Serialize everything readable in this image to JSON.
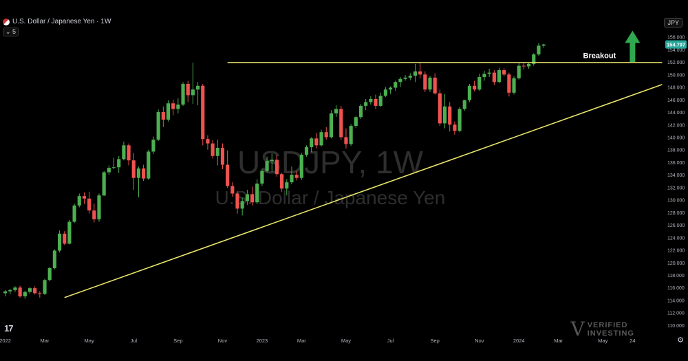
{
  "header": {
    "symbol_title": "U.S. Dollar / Japanese Yen · 1W",
    "interval_button": "⌄ 5",
    "currency_button": "JPY"
  },
  "watermark": {
    "big": "USDJPY, 1W",
    "small": "U.S. Dollar / Japanese Yen",
    "brand_line1": "VERIFIED",
    "brand_line2": "INVESTING"
  },
  "logo": "17",
  "settings_icon": "gear-icon",
  "colors": {
    "up": "#26a69a",
    "up_bright": "#4caf50",
    "down": "#ef5350",
    "line": "#e8e36a",
    "arrow": "#2fa84f",
    "price_tag": "#26a69a"
  },
  "chart_data": {
    "type": "candlestick",
    "title": "",
    "xlabel": "",
    "ylabel": "",
    "ylim": [
      109,
      157.5
    ],
    "y_ticks": [
      110,
      112,
      114,
      116,
      118,
      120,
      122,
      124,
      126,
      128,
      130,
      132,
      134,
      136,
      138,
      140,
      142,
      144,
      146,
      148,
      150,
      152,
      154,
      156
    ],
    "y_tick_labels": [
      "110.000",
      "112.000",
      "114.000",
      "116.000",
      "118.000",
      "120.000",
      "122.000",
      "124.000",
      "126.000",
      "128.000",
      "130.000",
      "132.000",
      "134.000",
      "136.000",
      "138.000",
      "140.000",
      "142.000",
      "144.000",
      "146.000",
      "148.000",
      "150.000",
      "152.000",
      "154.000",
      "156.000"
    ],
    "x_labels": [
      "2022",
      "Mar",
      "May",
      "Jul",
      "Sep",
      "Nov",
      "2023",
      "Mar",
      "May",
      "Jul",
      "Sep",
      "Nov",
      "2024",
      "Mar",
      "May",
      "24"
    ],
    "x_label_index": [
      0,
      8,
      17,
      26,
      35,
      44,
      52,
      60,
      69,
      78,
      87,
      96,
      104,
      112,
      121,
      127
    ],
    "last_price": 154.797,
    "last_price_label": "154.797",
    "candles_ohlc": [
      [
        115.1,
        115.6,
        114.6,
        115.4
      ],
      [
        115.4,
        115.8,
        114.9,
        115.6
      ],
      [
        115.6,
        116.2,
        115.3,
        116.0
      ],
      [
        116.0,
        116.3,
        114.4,
        114.6
      ],
      [
        114.6,
        115.5,
        114.2,
        115.3
      ],
      [
        115.3,
        116.1,
        115.0,
        115.9
      ],
      [
        115.9,
        116.2,
        114.9,
        115.1
      ],
      [
        115.1,
        115.4,
        114.4,
        115.0
      ],
      [
        115.0,
        117.4,
        114.8,
        117.2
      ],
      [
        117.2,
        119.3,
        117.0,
        119.1
      ],
      [
        119.1,
        122.1,
        118.9,
        121.9
      ],
      [
        121.9,
        125.1,
        121.6,
        124.6
      ],
      [
        124.6,
        125.0,
        122.8,
        123.0
      ],
      [
        123.0,
        126.8,
        122.9,
        126.5
      ],
      [
        126.5,
        129.4,
        126.3,
        129.1
      ],
      [
        129.1,
        131.0,
        128.8,
        130.6
      ],
      [
        130.6,
        131.2,
        129.3,
        130.2
      ],
      [
        130.2,
        131.3,
        127.8,
        128.3
      ],
      [
        128.3,
        129.4,
        126.4,
        126.9
      ],
      [
        126.9,
        131.0,
        126.5,
        130.7
      ],
      [
        130.7,
        134.6,
        130.6,
        134.4
      ],
      [
        134.4,
        135.5,
        134.0,
        135.1
      ],
      [
        135.1,
        136.7,
        134.9,
        135.2
      ],
      [
        135.2,
        137.0,
        134.3,
        136.5
      ],
      [
        136.5,
        139.3,
        136.3,
        138.7
      ],
      [
        138.7,
        139.0,
        135.5,
        136.3
      ],
      [
        136.3,
        137.5,
        131.6,
        133.5
      ],
      [
        133.5,
        135.3,
        130.4,
        135.0
      ],
      [
        135.0,
        135.6,
        133.0,
        133.4
      ],
      [
        133.4,
        138.0,
        133.2,
        137.7
      ],
      [
        137.7,
        140.1,
        137.3,
        139.6
      ],
      [
        139.6,
        144.4,
        139.4,
        144.0
      ],
      [
        144.0,
        144.9,
        141.6,
        142.8
      ],
      [
        142.8,
        145.9,
        142.5,
        145.4
      ],
      [
        145.4,
        146.0,
        143.5,
        144.5
      ],
      [
        144.5,
        146.2,
        143.8,
        145.2
      ],
      [
        145.2,
        148.8,
        145.0,
        148.5
      ],
      [
        148.5,
        149.0,
        145.6,
        146.7
      ],
      [
        146.7,
        151.9,
        145.3,
        147.6
      ],
      [
        147.6,
        148.8,
        145.1,
        148.2
      ],
      [
        148.2,
        148.5,
        138.7,
        139.7
      ],
      [
        139.7,
        140.3,
        138.0,
        139.0
      ],
      [
        139.0,
        139.5,
        136.6,
        137.0
      ],
      [
        137.0,
        139.6,
        135.5,
        138.3
      ],
      [
        138.3,
        139.0,
        134.9,
        135.6
      ],
      [
        135.6,
        137.9,
        131.9,
        132.2
      ],
      [
        132.2,
        132.8,
        130.5,
        131.0
      ],
      [
        131.0,
        131.4,
        127.8,
        128.6
      ],
      [
        128.6,
        130.3,
        127.5,
        129.8
      ],
      [
        129.8,
        131.6,
        129.2,
        130.9
      ],
      [
        130.9,
        132.1,
        129.1,
        129.6
      ],
      [
        129.6,
        133.3,
        129.3,
        132.6
      ],
      [
        132.6,
        134.9,
        132.2,
        134.6
      ],
      [
        134.6,
        136.9,
        134.4,
        136.2
      ],
      [
        136.2,
        137.4,
        134.5,
        136.4
      ],
      [
        136.4,
        137.1,
        133.7,
        134.1
      ],
      [
        134.1,
        134.3,
        131.3,
        131.8
      ],
      [
        131.8,
        133.3,
        130.7,
        132.8
      ],
      [
        132.8,
        135.3,
        132.5,
        134.0
      ],
      [
        134.0,
        134.6,
        133.1,
        133.5
      ],
      [
        133.5,
        137.5,
        133.2,
        137.2
      ],
      [
        137.2,
        138.7,
        136.9,
        138.4
      ],
      [
        138.4,
        140.0,
        137.6,
        139.8
      ],
      [
        139.8,
        140.7,
        138.2,
        138.7
      ],
      [
        138.7,
        141.2,
        138.5,
        140.8
      ],
      [
        140.8,
        141.6,
        139.6,
        140.0
      ],
      [
        140.0,
        144.3,
        139.8,
        143.8
      ],
      [
        143.8,
        145.1,
        143.2,
        144.5
      ],
      [
        144.5,
        145.0,
        139.6,
        140.0
      ],
      [
        140.0,
        141.4,
        138.2,
        138.9
      ],
      [
        138.9,
        142.1,
        138.6,
        141.8
      ],
      [
        141.8,
        143.4,
        141.5,
        143.2
      ],
      [
        143.2,
        145.3,
        142.9,
        145.0
      ],
      [
        145.0,
        146.1,
        144.3,
        145.6
      ],
      [
        145.6,
        146.5,
        145.2,
        146.1
      ],
      [
        146.1,
        146.8,
        144.5,
        145.0
      ],
      [
        145.0,
        147.1,
        144.8,
        146.6
      ],
      [
        146.6,
        148.0,
        146.4,
        147.6
      ],
      [
        147.6,
        148.1,
        146.9,
        147.9
      ],
      [
        147.9,
        149.0,
        147.4,
        148.8
      ],
      [
        148.8,
        149.6,
        148.0,
        149.3
      ],
      [
        149.3,
        149.9,
        149.0,
        149.5
      ],
      [
        149.5,
        150.2,
        149.1,
        149.8
      ],
      [
        149.8,
        151.7,
        148.8,
        150.5
      ],
      [
        150.5,
        151.9,
        149.4,
        150.0
      ],
      [
        150.0,
        150.5,
        147.2,
        147.6
      ],
      [
        147.6,
        149.8,
        147.2,
        149.5
      ],
      [
        149.5,
        150.2,
        146.8,
        147.0
      ],
      [
        147.0,
        147.6,
        141.8,
        142.2
      ],
      [
        142.2,
        146.9,
        141.4,
        144.9
      ],
      [
        144.9,
        145.6,
        140.9,
        142.0
      ],
      [
        142.0,
        142.5,
        140.4,
        141.0
      ],
      [
        141.0,
        144.8,
        140.8,
        144.5
      ],
      [
        144.5,
        146.0,
        144.2,
        145.9
      ],
      [
        145.9,
        148.5,
        145.6,
        148.2
      ],
      [
        148.2,
        149.0,
        147.3,
        147.6
      ],
      [
        147.6,
        150.1,
        147.4,
        149.6
      ],
      [
        149.6,
        150.6,
        149.0,
        150.1
      ],
      [
        150.1,
        150.9,
        149.6,
        150.3
      ],
      [
        150.3,
        150.7,
        148.3,
        148.8
      ],
      [
        148.8,
        151.1,
        148.6,
        150.7
      ],
      [
        150.7,
        151.0,
        149.7,
        150.0
      ],
      [
        150.0,
        150.3,
        146.5,
        147.1
      ],
      [
        147.1,
        149.7,
        146.8,
        149.4
      ],
      [
        149.4,
        151.8,
        149.2,
        151.4
      ],
      [
        151.4,
        151.9,
        150.8,
        151.3
      ],
      [
        151.3,
        151.8,
        150.9,
        151.7
      ],
      [
        151.7,
        153.4,
        151.4,
        153.2
      ],
      [
        153.2,
        155.0,
        153.0,
        154.6
      ],
      [
        154.6,
        154.9,
        154.3,
        154.8
      ]
    ],
    "lines": [
      {
        "name": "resistance",
        "from": {
          "i": 45,
          "y": 151.9
        },
        "to": {
          "i": 133,
          "y": 151.9
        }
      },
      {
        "name": "support-trendline",
        "from": {
          "i": 12,
          "y": 114.4
        },
        "to": {
          "i": 133,
          "y": 148.4
        }
      }
    ],
    "annotations": [
      {
        "text": "Breakout",
        "i": 117,
        "y": 152.6
      },
      {
        "text": "arrow-up",
        "i": 127,
        "y_from": 152.0,
        "y_to": 157.0
      }
    ],
    "grid": false
  }
}
